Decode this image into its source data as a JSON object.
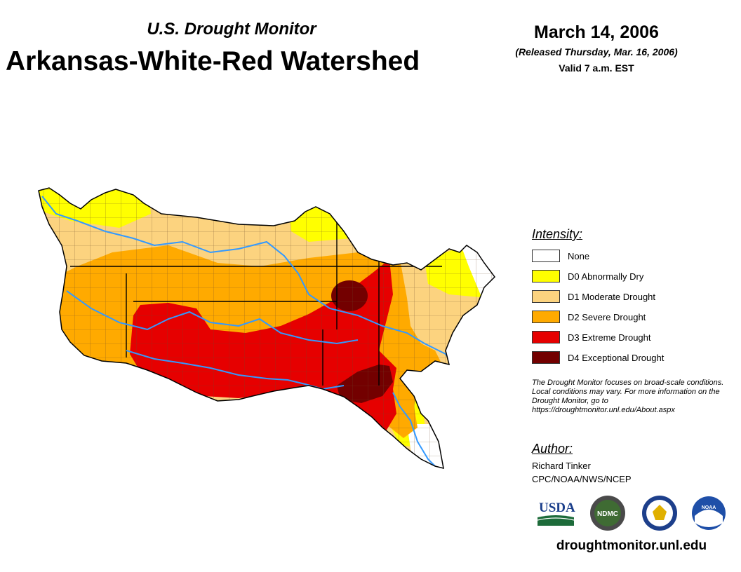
{
  "header": {
    "subtitle": "U.S. Drought Monitor",
    "title": "Arkansas-White-Red Watershed",
    "date": "March 14, 2006",
    "released": "(Released Thursday, Mar. 16, 2006)",
    "valid": "Valid 7 a.m. EST"
  },
  "legend": {
    "heading": "Intensity:",
    "items": [
      {
        "label": "None",
        "color": "#ffffff"
      },
      {
        "label": "D0 Abnormally Dry",
        "color": "#ffff00"
      },
      {
        "label": "D1 Moderate Drought",
        "color": "#fcd37f"
      },
      {
        "label": "D2 Severe Drought",
        "color": "#ffaa00"
      },
      {
        "label": "D3 Extreme Drought",
        "color": "#e60000"
      },
      {
        "label": "D4 Exceptional Drought",
        "color": "#730000"
      }
    ]
  },
  "note": "The Drought Monitor focuses on broad-scale conditions. Local conditions may vary. For more information on the Drought Monitor, go to https://droughtmonitor.unl.edu/About.aspx",
  "author": {
    "heading": "Author:",
    "name": "Richard Tinker",
    "org": "CPC/NOAA/NWS/NCEP"
  },
  "logos": {
    "usda": "USDA",
    "ndmc": "NDMC",
    "noaa": "NOAA"
  },
  "website": "droughtmonitor.unl.edu",
  "colors": {
    "river": "#3399ff",
    "county_line": "#6b4a2a"
  }
}
